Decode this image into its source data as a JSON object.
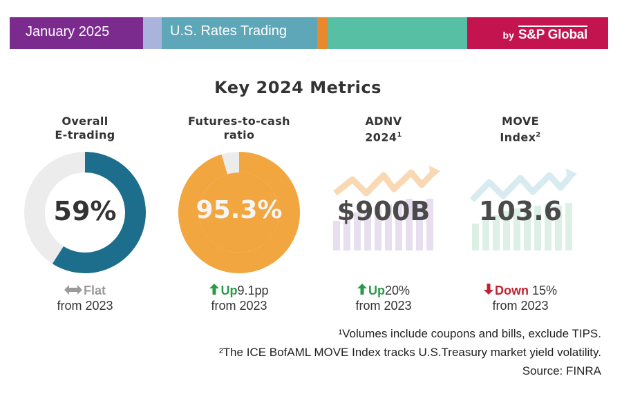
{
  "header": {
    "date": "January 2025",
    "section": "U.S. Rates Trading",
    "brand_by": "by",
    "brand_name": "S&P Global",
    "colors": [
      "#7b2a8e",
      "#a9b3dc",
      "#5ea7b9",
      "#e8892e",
      "#57bfa3",
      "#c4144f"
    ]
  },
  "title": "Key 2024 Metrics",
  "metrics": [
    {
      "label": "Overall\nE-trading",
      "sup": "",
      "value": "59%",
      "change_dir": "Flat",
      "change_amount": "",
      "change_from": "from 2023",
      "change_icon": "left-right-arrow-icon",
      "value_color": "#1d6e8c",
      "dir_color": "#9a9a9a"
    },
    {
      "label": "Futures-to-cash\nratio",
      "sup": "",
      "value": "95.3%",
      "change_dir": "Up",
      "change_amount": "9.1pp",
      "change_from": "from 2023",
      "change_icon": "up-arrow-icon",
      "value_color": "#f5f5f5",
      "dir_color": "#2a9a48"
    },
    {
      "label": "ADNV\n2024",
      "sup": "1",
      "value": "$900B",
      "change_dir": "Up",
      "change_amount": "20%",
      "change_from": "from 2023",
      "change_icon": "up-arrow-icon",
      "value_color": "#4a4a4a",
      "dir_color": "#2a9a48"
    },
    {
      "label": "MOVE\nIndex",
      "sup": "2",
      "value": "103.6",
      "change_dir": "Down",
      "change_amount": "15%",
      "change_from": "from 2023",
      "change_icon": "down-arrow-icon",
      "value_color": "#4a4a4a",
      "dir_color": "#c0232f"
    }
  ],
  "chart_data": [
    {
      "type": "pie",
      "title": "Overall E-trading",
      "values": [
        59,
        41
      ],
      "colors": [
        "#1d6e8c",
        "#ececec"
      ]
    },
    {
      "type": "pie",
      "title": "Futures-to-cash ratio",
      "values": [
        95.3,
        4.7
      ],
      "colors": [
        "#f2a640",
        "#ececec"
      ]
    }
  ],
  "notes": {
    "note1": "¹Volumes include coupons and bills, exclude TIPS.",
    "note2": "²The ICE BofAML MOVE Index tracks U.S.Treasury market yield volatility.",
    "source": "Source: FINRA"
  }
}
